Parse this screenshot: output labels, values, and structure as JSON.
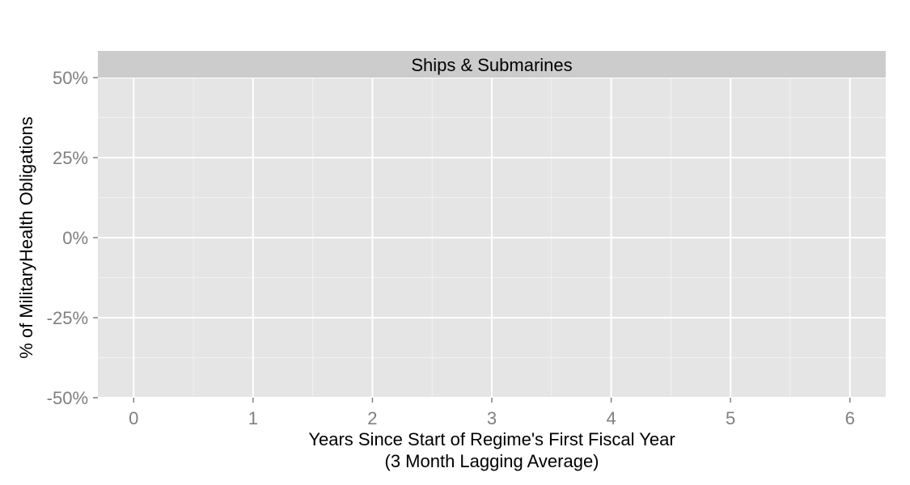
{
  "chart_data": {
    "type": "line",
    "panel_title": "Ships & Submarines",
    "xlabel": "Years Since Start of Regime's First Fiscal Year",
    "xlabel_line2": "(3 Month Lagging Average)",
    "ylabel": "% of MilitaryHealth Obligations",
    "x_ticks": [
      0,
      1,
      2,
      3,
      4,
      5,
      6
    ],
    "y_ticks": [
      -50,
      -25,
      0,
      25,
      50
    ],
    "y_tick_labels": [
      "-50%",
      "-25%",
      "0%",
      "25%",
      "50%"
    ],
    "xlim": [
      -0.3,
      6.3
    ],
    "ylim": [
      -50,
      50
    ],
    "grid": true,
    "series": []
  },
  "colors": {
    "panel_background": "#e5e5e5",
    "strip_background": "#cccccc",
    "grid_major": "#ffffff",
    "grid_minor": "#f2f2f2",
    "tick_text": "#7f7f7f",
    "tick_mark": "#7f7f7f"
  }
}
